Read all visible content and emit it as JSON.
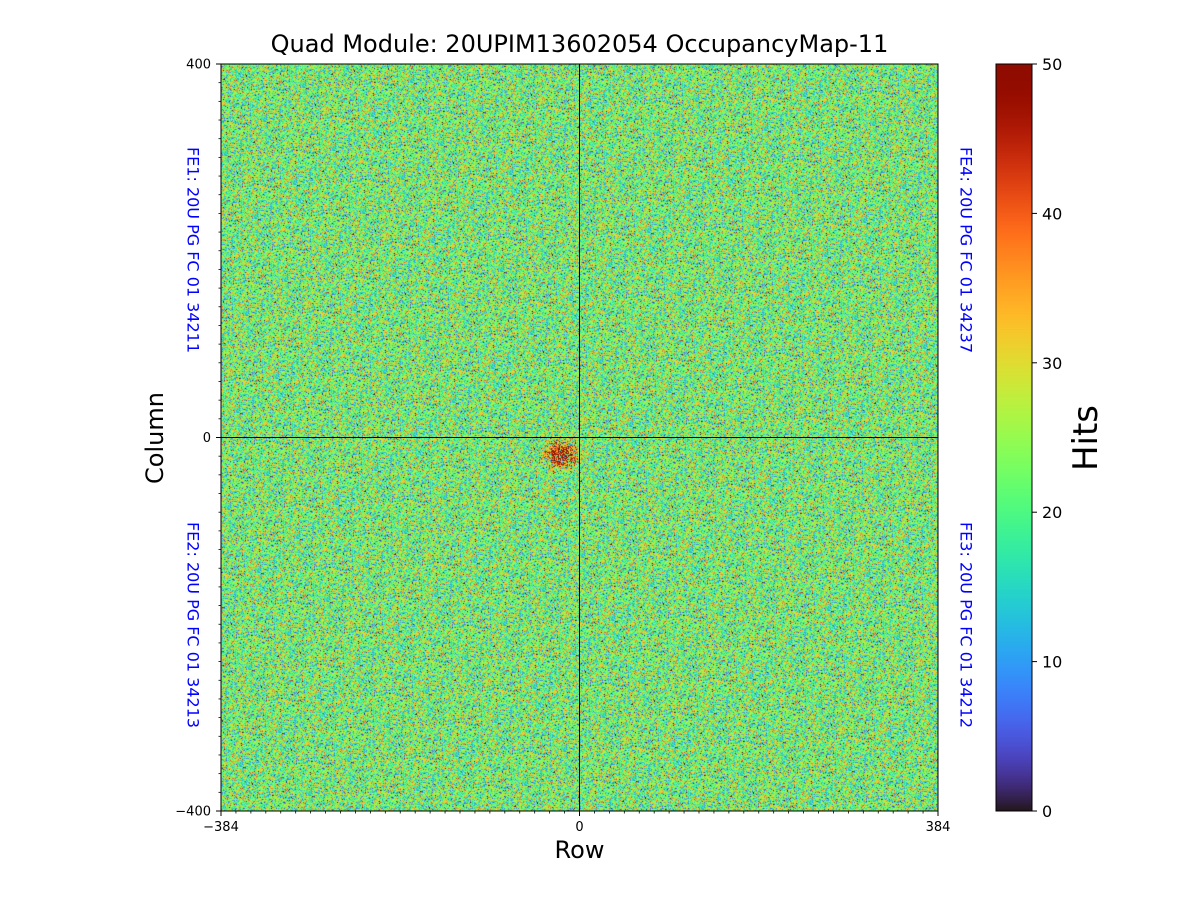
{
  "chart_data": {
    "type": "heatmap",
    "title": "Quad Module: 20UPIM13602054 OccupancyMap-11",
    "xlabel": "Row",
    "ylabel": "Column",
    "xlim": [
      -384,
      384
    ],
    "ylim": [
      -400,
      400
    ],
    "x_ticks": [
      "−384",
      "0",
      "384"
    ],
    "y_ticks": [
      "400",
      "0",
      "−400"
    ],
    "grid": false,
    "colorbar": {
      "label": "Hits",
      "range": [
        0,
        50
      ],
      "ticks": [
        "0",
        "10",
        "20",
        "30",
        "40",
        "50"
      ],
      "colormap": "turbo"
    },
    "front_ends": [
      {
        "id": "FE1",
        "label": "FE1: 20U PG FC 01 34211",
        "quadrant": "top-left"
      },
      {
        "id": "FE2",
        "label": "FE2: 20U PG FC 01 34213",
        "quadrant": "bottom-left"
      },
      {
        "id": "FE3",
        "label": "FE3: 20U PG FC 01 34212",
        "quadrant": "bottom-right"
      },
      {
        "id": "FE4",
        "label": "FE4: 20U PG FC 01 34237",
        "quadrant": "top-right"
      }
    ],
    "distribution": {
      "typical_hits": 22,
      "hot_spot": {
        "x_range": [
          -40,
          0
        ],
        "y_range": [
          -35,
          0
        ],
        "typical_hits": 45
      }
    },
    "divider_color": "#000000",
    "label_color": "#0000ff"
  }
}
